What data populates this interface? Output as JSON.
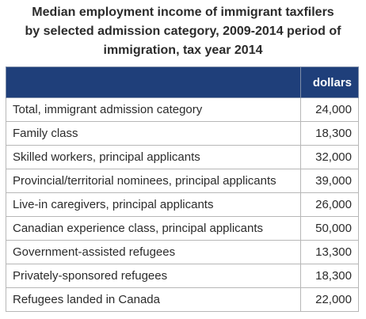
{
  "title_lines": [
    "Median employment income of immigrant taxfilers",
    "by selected admission category, 2009-2014 period of",
    "immigration, tax year 2014"
  ],
  "table": {
    "header": [
      "",
      "dollars"
    ],
    "rows": [
      {
        "label": "Total, immigrant admission category",
        "value": "24,000"
      },
      {
        "label": "Family class",
        "value": "18,300"
      },
      {
        "label": "Skilled workers, principal applicants",
        "value": "32,000"
      },
      {
        "label": "Provincial/territorial nominees, principal applicants",
        "value": "39,000"
      },
      {
        "label": "Live-in caregivers, principal applicants",
        "value": "26,000"
      },
      {
        "label": "Canadian experience class, principal applicants",
        "value": "50,000"
      },
      {
        "label": "Government-assisted refugees",
        "value": "13,300"
      },
      {
        "label": "Privately-sponsored refugees",
        "value": "18,300"
      },
      {
        "label": "Refugees landed in Canada",
        "value": "22,000"
      }
    ]
  },
  "colors": {
    "header_bg": "#1f3f7a",
    "header_text": "#ffffff",
    "text": "#2b2b2b"
  }
}
